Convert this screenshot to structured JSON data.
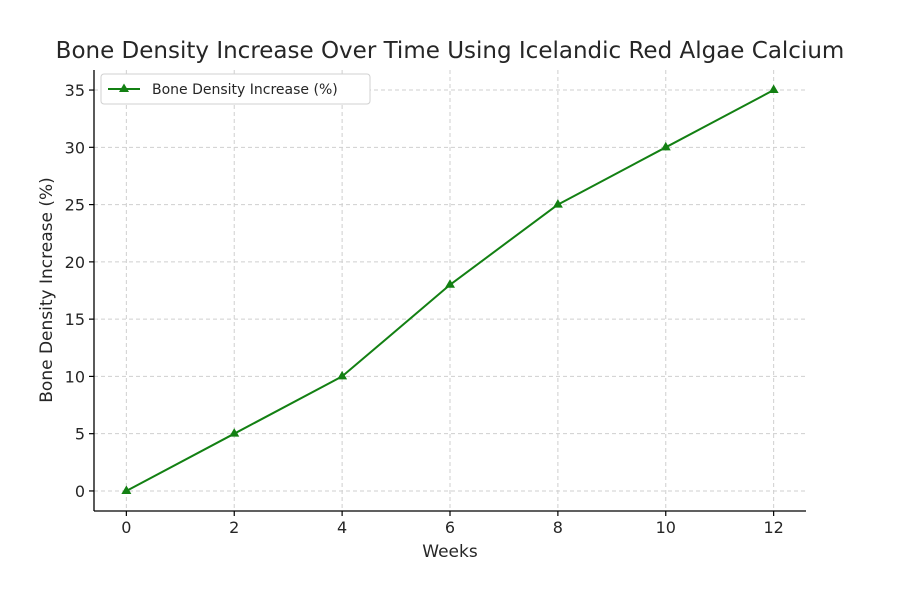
{
  "chart_data": {
    "type": "line",
    "title": "Bone Density Increase Over Time Using Icelandic Red Algae Calcium",
    "xlabel": "Weeks",
    "ylabel": "Bone Density Increase (%)",
    "x": [
      0,
      2,
      4,
      6,
      8,
      10,
      12
    ],
    "series": [
      {
        "name": "Bone Density Increase (%)",
        "values": [
          0,
          5,
          10,
          18,
          25,
          30,
          35
        ],
        "color": "#138013",
        "marker": "triangle"
      }
    ],
    "xticks": [
      "0",
      "2",
      "4",
      "6",
      "8",
      "10",
      "12"
    ],
    "yticks": [
      "0",
      "5",
      "10",
      "15",
      "20",
      "25",
      "30",
      "35"
    ],
    "xlim": [
      -0.6,
      12.6
    ],
    "ylim": [
      -1.75,
      36.75
    ],
    "grid": true,
    "legend_position": "top-left"
  }
}
